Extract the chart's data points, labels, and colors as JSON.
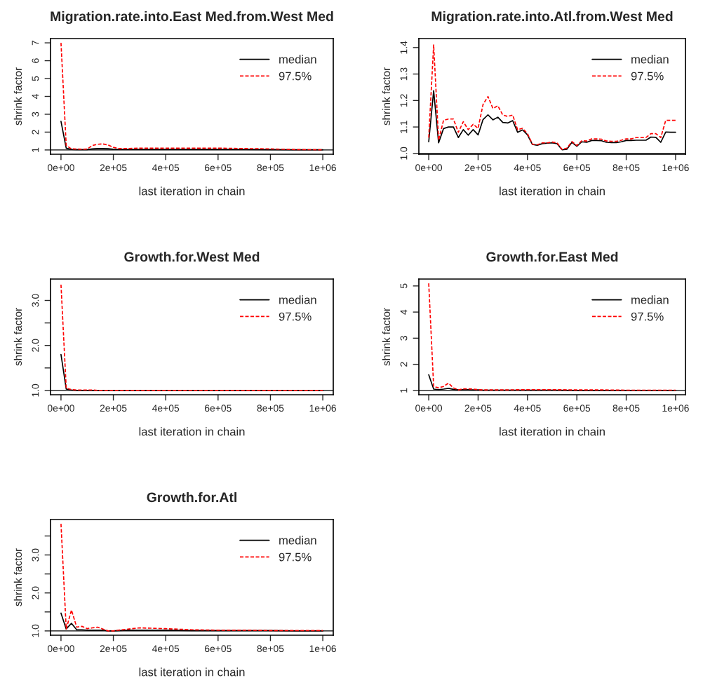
{
  "chart_data": [
    {
      "type": "line",
      "title": "Migration.rate.into.East Med.from.West Med",
      "xlabel": "last iteration in chain",
      "ylabel": "shrink factor",
      "xlim": [
        -40000,
        1040000
      ],
      "xticks": [
        {
          "value": 0,
          "label": "0e+00"
        },
        {
          "value": 200000,
          "label": "2e+05"
        },
        {
          "value": 400000,
          "label": "4e+05"
        },
        {
          "value": 600000,
          "label": "6e+05"
        },
        {
          "value": 800000,
          "label": "8e+05"
        },
        {
          "value": 1000000,
          "label": "1e+06"
        }
      ],
      "ylim": [
        0.76,
        7.24
      ],
      "yticks": [
        1,
        2,
        3,
        4,
        5,
        6,
        7
      ],
      "legend": "top right",
      "ref_lines": [
        {
          "axis": "y",
          "value": 1,
          "color": "#000000"
        }
      ],
      "x": [
        0,
        20000,
        40000,
        60000,
        80000,
        100000,
        120000,
        140000,
        160000,
        180000,
        200000,
        220000,
        260000,
        300000,
        400000,
        500000,
        600000,
        700000,
        800000,
        900000,
        1000000
      ],
      "series": [
        {
          "name": "median",
          "color": "#000000",
          "line_style": "solid",
          "values": [
            2.6,
            1.1,
            1.03,
            1.02,
            1.02,
            1.02,
            1.06,
            1.08,
            1.08,
            1.07,
            1.04,
            1.03,
            1.03,
            1.03,
            1.03,
            1.03,
            1.03,
            1.03,
            1.02,
            1.01,
            1.01
          ]
        },
        {
          "name": "97.5%",
          "color": "#ff0000",
          "line_style": "dashed",
          "values": [
            7.0,
            1.25,
            1.06,
            1.05,
            1.04,
            1.05,
            1.25,
            1.32,
            1.34,
            1.28,
            1.15,
            1.08,
            1.08,
            1.1,
            1.1,
            1.1,
            1.1,
            1.08,
            1.06,
            1.02,
            1.01
          ]
        }
      ]
    },
    {
      "type": "line",
      "title": "Migration.rate.into.Atl.from.West Med",
      "xlabel": "last iteration in chain",
      "ylabel": "shrink factor",
      "xlim": [
        -40000,
        1040000
      ],
      "xticks": [
        {
          "value": 0,
          "label": "0e+00"
        },
        {
          "value": 200000,
          "label": "2e+05"
        },
        {
          "value": 400000,
          "label": "4e+05"
        },
        {
          "value": 600000,
          "label": "6e+05"
        },
        {
          "value": 800000,
          "label": "8e+05"
        },
        {
          "value": 1000000,
          "label": "1e+06"
        }
      ],
      "ylim": [
        0.997,
        1.434
      ],
      "yticks": [
        {
          "value": 1,
          "label": "1.0"
        },
        1.1,
        1.2,
        1.3,
        1.4
      ],
      "legend": "top right",
      "ref_lines": [
        {
          "axis": "y",
          "value": 1,
          "color": "#000000"
        }
      ],
      "x": [
        0,
        20000,
        40000,
        60000,
        80000,
        100000,
        120000,
        140000,
        160000,
        180000,
        200000,
        220000,
        240000,
        260000,
        280000,
        300000,
        320000,
        340000,
        360000,
        380000,
        400000,
        420000,
        440000,
        460000,
        480000,
        500000,
        520000,
        540000,
        560000,
        580000,
        600000,
        620000,
        640000,
        660000,
        680000,
        700000,
        720000,
        740000,
        760000,
        780000,
        800000,
        820000,
        840000,
        860000,
        880000,
        900000,
        920000,
        940000,
        960000,
        980000,
        1000000
      ],
      "series": [
        {
          "name": "median",
          "color": "#000000",
          "line_style": "solid",
          "values": [
            1.044,
            1.237,
            1.04,
            1.094,
            1.1,
            1.1,
            1.06,
            1.09,
            1.069,
            1.09,
            1.07,
            1.128,
            1.146,
            1.127,
            1.137,
            1.117,
            1.115,
            1.124,
            1.08,
            1.089,
            1.07,
            1.034,
            1.031,
            1.037,
            1.039,
            1.04,
            1.037,
            1.014,
            1.016,
            1.042,
            1.027,
            1.044,
            1.042,
            1.049,
            1.049,
            1.048,
            1.042,
            1.041,
            1.041,
            1.044,
            1.049,
            1.049,
            1.05,
            1.05,
            1.05,
            1.062,
            1.061,
            1.042,
            1.081,
            1.08,
            1.08
          ]
        },
        {
          "name": "97.5%",
          "color": "#ff0000",
          "line_style": "dashed",
          "values": [
            1.06,
            1.41,
            1.05,
            1.125,
            1.13,
            1.13,
            1.08,
            1.12,
            1.09,
            1.11,
            1.095,
            1.185,
            1.215,
            1.17,
            1.18,
            1.145,
            1.14,
            1.145,
            1.09,
            1.095,
            1.075,
            1.035,
            1.033,
            1.04,
            1.04,
            1.043,
            1.04,
            1.015,
            1.02,
            1.045,
            1.03,
            1.048,
            1.047,
            1.055,
            1.055,
            1.054,
            1.047,
            1.046,
            1.046,
            1.05,
            1.055,
            1.055,
            1.06,
            1.06,
            1.06,
            1.075,
            1.075,
            1.06,
            1.125,
            1.125,
            1.125
          ]
        }
      ]
    },
    {
      "type": "line",
      "title": "Growth.for.West Med",
      "xlabel": "last iteration in chain",
      "ylabel": "shrink factor",
      "xlim": [
        -40000,
        1040000
      ],
      "xticks": [
        {
          "value": 0,
          "label": "0e+00"
        },
        {
          "value": 200000,
          "label": "2e+05"
        },
        {
          "value": 400000,
          "label": "4e+05"
        },
        {
          "value": 600000,
          "label": "6e+05"
        },
        {
          "value": 800000,
          "label": "8e+05"
        },
        {
          "value": 1000000,
          "label": "1e+06"
        }
      ],
      "ylim": [
        0.905,
        3.475
      ],
      "yticks": [
        {
          "value": 1,
          "label": "1.0"
        },
        {
          "value": 1.5,
          "label": null
        },
        {
          "value": 2,
          "label": "2.0"
        },
        {
          "value": 2.5,
          "label": null
        },
        {
          "value": 3,
          "label": "3.0"
        }
      ],
      "legend": "top right",
      "ref_lines": [
        {
          "axis": "y",
          "value": 1,
          "color": "#000000"
        }
      ],
      "x": [
        0,
        20000,
        40000,
        60000,
        80000,
        100000,
        120000,
        140000,
        160000,
        180000,
        200000,
        220000,
        260000,
        300000,
        400000,
        500000,
        600000,
        700000,
        800000,
        900000,
        1000000
      ],
      "series": [
        {
          "name": "median",
          "color": "#000000",
          "line_style": "solid",
          "values": [
            1.8,
            1.03,
            1.01,
            1.0,
            1.0,
            1.0,
            1.0,
            1.0,
            1.0,
            1.0,
            1.0,
            1.0,
            1.0,
            1.0,
            1.0,
            1.0,
            1.0,
            1.0,
            1.0,
            1.0,
            1.0
          ]
        },
        {
          "name": "97.5%",
          "color": "#ff0000",
          "line_style": "dashed",
          "values": [
            3.35,
            1.05,
            1.02,
            1.01,
            1.01,
            1.01,
            1.01,
            1.0,
            1.0,
            1.0,
            1.0,
            1.0,
            1.0,
            1.0,
            1.0,
            1.0,
            1.0,
            1.0,
            1.0,
            1.0,
            1.0
          ]
        }
      ]
    },
    {
      "type": "line",
      "title": "Growth.for.East Med",
      "xlabel": "last iteration in chain",
      "ylabel": "shrink factor",
      "xlim": [
        -40000,
        1040000
      ],
      "xticks": [
        {
          "value": 0,
          "label": "0e+00"
        },
        {
          "value": 200000,
          "label": "2e+05"
        },
        {
          "value": 400000,
          "label": "4e+05"
        },
        {
          "value": 600000,
          "label": "6e+05"
        },
        {
          "value": 800000,
          "label": "8e+05"
        },
        {
          "value": 1000000,
          "label": "1e+06"
        }
      ],
      "ylim": [
        0.836,
        5.264
      ],
      "yticks": [
        1,
        2,
        3,
        4,
        5
      ],
      "legend": "top right",
      "ref_lines": [
        {
          "axis": "y",
          "value": 1,
          "color": "#000000"
        }
      ],
      "x": [
        0,
        20000,
        40000,
        60000,
        80000,
        100000,
        120000,
        140000,
        160000,
        180000,
        200000,
        220000,
        260000,
        300000,
        400000,
        500000,
        600000,
        700000,
        800000,
        900000,
        1000000
      ],
      "series": [
        {
          "name": "median",
          "color": "#000000",
          "line_style": "solid",
          "values": [
            1.6,
            1.05,
            1.03,
            1.05,
            1.08,
            1.04,
            1.02,
            1.03,
            1.03,
            1.02,
            1.02,
            1.01,
            1.01,
            1.01,
            1.01,
            1.01,
            1.0,
            1.0,
            1.0,
            1.0,
            1.0
          ]
        },
        {
          "name": "97.5%",
          "color": "#ff0000",
          "line_style": "dashed",
          "values": [
            5.1,
            1.15,
            1.1,
            1.15,
            1.28,
            1.1,
            1.02,
            1.06,
            1.06,
            1.05,
            1.03,
            1.02,
            1.02,
            1.02,
            1.03,
            1.03,
            1.02,
            1.02,
            1.01,
            1.01,
            1.01
          ]
        }
      ]
    },
    {
      "type": "line",
      "title": "Growth.for.Atl",
      "xlabel": "last iteration in chain",
      "ylabel": "shrink factor",
      "xlim": [
        -40000,
        1040000
      ],
      "xticks": [
        {
          "value": 0,
          "label": "0e+00"
        },
        {
          "value": 200000,
          "label": "2e+05"
        },
        {
          "value": 400000,
          "label": "4e+05"
        },
        {
          "value": 600000,
          "label": "6e+05"
        },
        {
          "value": 800000,
          "label": "8e+05"
        },
        {
          "value": 1000000,
          "label": "1e+06"
        }
      ],
      "ylim": [
        0.887,
        3.933
      ],
      "yticks": [
        {
          "value": 1,
          "label": "1.0"
        },
        {
          "value": 1.5,
          "label": null
        },
        {
          "value": 2,
          "label": "2.0"
        },
        {
          "value": 2.5,
          "label": null
        },
        {
          "value": 3,
          "label": "3.0"
        },
        {
          "value": 3.5,
          "label": null
        }
      ],
      "legend": "top right",
      "ref_lines": [
        {
          "axis": "y",
          "value": 1,
          "color": "#000000"
        }
      ],
      "x": [
        0,
        20000,
        40000,
        60000,
        80000,
        100000,
        120000,
        140000,
        160000,
        180000,
        200000,
        220000,
        260000,
        300000,
        400000,
        500000,
        600000,
        700000,
        800000,
        900000,
        1000000
      ],
      "series": [
        {
          "name": "median",
          "color": "#000000",
          "line_style": "solid",
          "values": [
            1.47,
            1.05,
            1.2,
            1.03,
            1.03,
            1.02,
            1.02,
            1.02,
            1.02,
            1.0,
            1.0,
            1.01,
            1.02,
            1.02,
            1.02,
            1.01,
            1.01,
            1.01,
            1.01,
            1.0,
            1.0
          ]
        },
        {
          "name": "97.5%",
          "color": "#ff0000",
          "line_style": "dashed",
          "values": [
            3.82,
            1.05,
            1.55,
            1.1,
            1.12,
            1.06,
            1.08,
            1.1,
            1.05,
            1.0,
            1.0,
            1.02,
            1.05,
            1.08,
            1.06,
            1.03,
            1.02,
            1.02,
            1.01,
            1.01,
            1.01
          ]
        }
      ]
    }
  ]
}
